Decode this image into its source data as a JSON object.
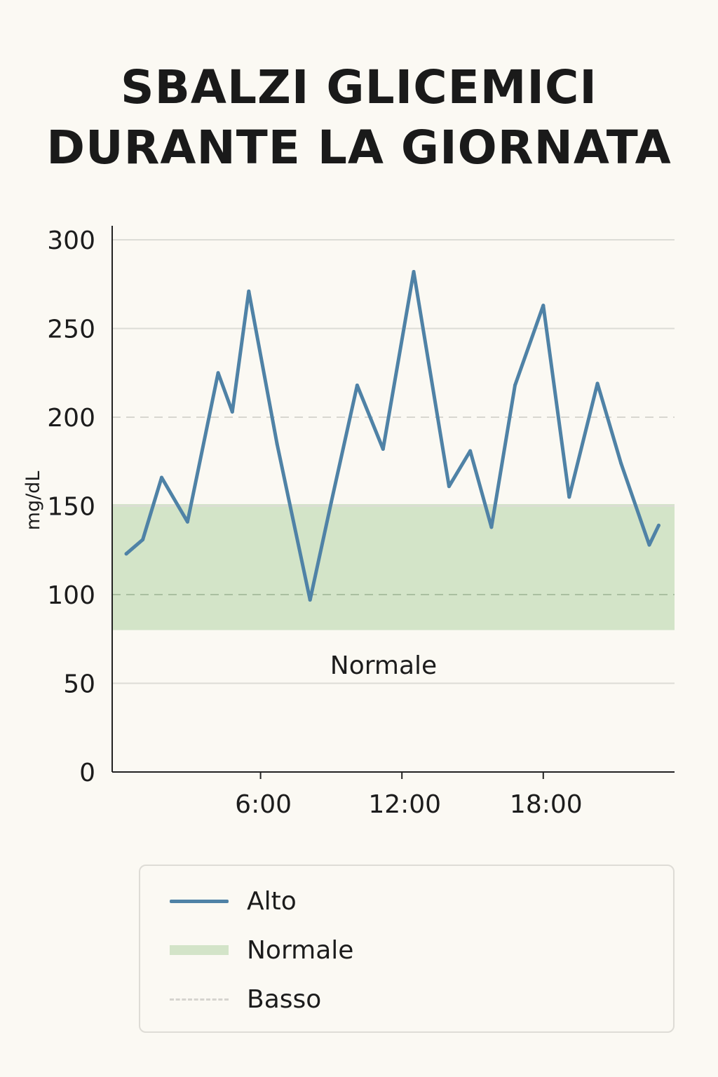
{
  "title_lines": [
    "SBALZI GLICEMICI",
    "DURANTE LA GIORNATA"
  ],
  "colors": {
    "background": "#fbf9f3",
    "line": "#4f82a6",
    "normal_band": "#d3e4c8",
    "grid": "#dcdcd6",
    "dashed_grid": "#d8d7d0",
    "axis": "#222222"
  },
  "chart_data": {
    "type": "line",
    "title": "SBALZI GLICEMICI DURANTE LA GIORNATA",
    "ylabel": "mg/dL",
    "xlabel": "",
    "ylim": [
      0,
      300
    ],
    "yticks": [
      0,
      50,
      100,
      150,
      200,
      250,
      300
    ],
    "xlim_hours": [
      0,
      24
    ],
    "xticks": [
      {
        "hour": 6,
        "label": "6:00"
      },
      {
        "hour": 12,
        "label": "12:00"
      },
      {
        "hour": 18,
        "label": "18:00"
      }
    ],
    "dashed_gridlines": [
      100,
      200
    ],
    "normal_band": {
      "from": 80,
      "to": 151,
      "label": "Normale"
    },
    "series": [
      {
        "name": "Alto",
        "x": [
          0.3,
          1.0,
          1.8,
          2.9,
          4.2,
          4.8,
          5.5,
          6.7,
          8.1,
          9.0,
          10.1,
          11.2,
          12.5,
          14.0,
          14.9,
          15.8,
          16.8,
          18.0,
          19.1,
          20.3,
          21.3,
          22.5,
          22.9
        ],
        "y": [
          123,
          131,
          166,
          141,
          225,
          203,
          271,
          185,
          97,
          152,
          218,
          182,
          282,
          161,
          181,
          138,
          218,
          263,
          155,
          219,
          174,
          128,
          139
        ]
      }
    ],
    "grid": true,
    "legend_position": "bottom"
  },
  "legend": [
    {
      "label": "Alto",
      "style": "line"
    },
    {
      "label": "Normale",
      "style": "band"
    },
    {
      "label": "Basso",
      "style": "dashed"
    }
  ]
}
